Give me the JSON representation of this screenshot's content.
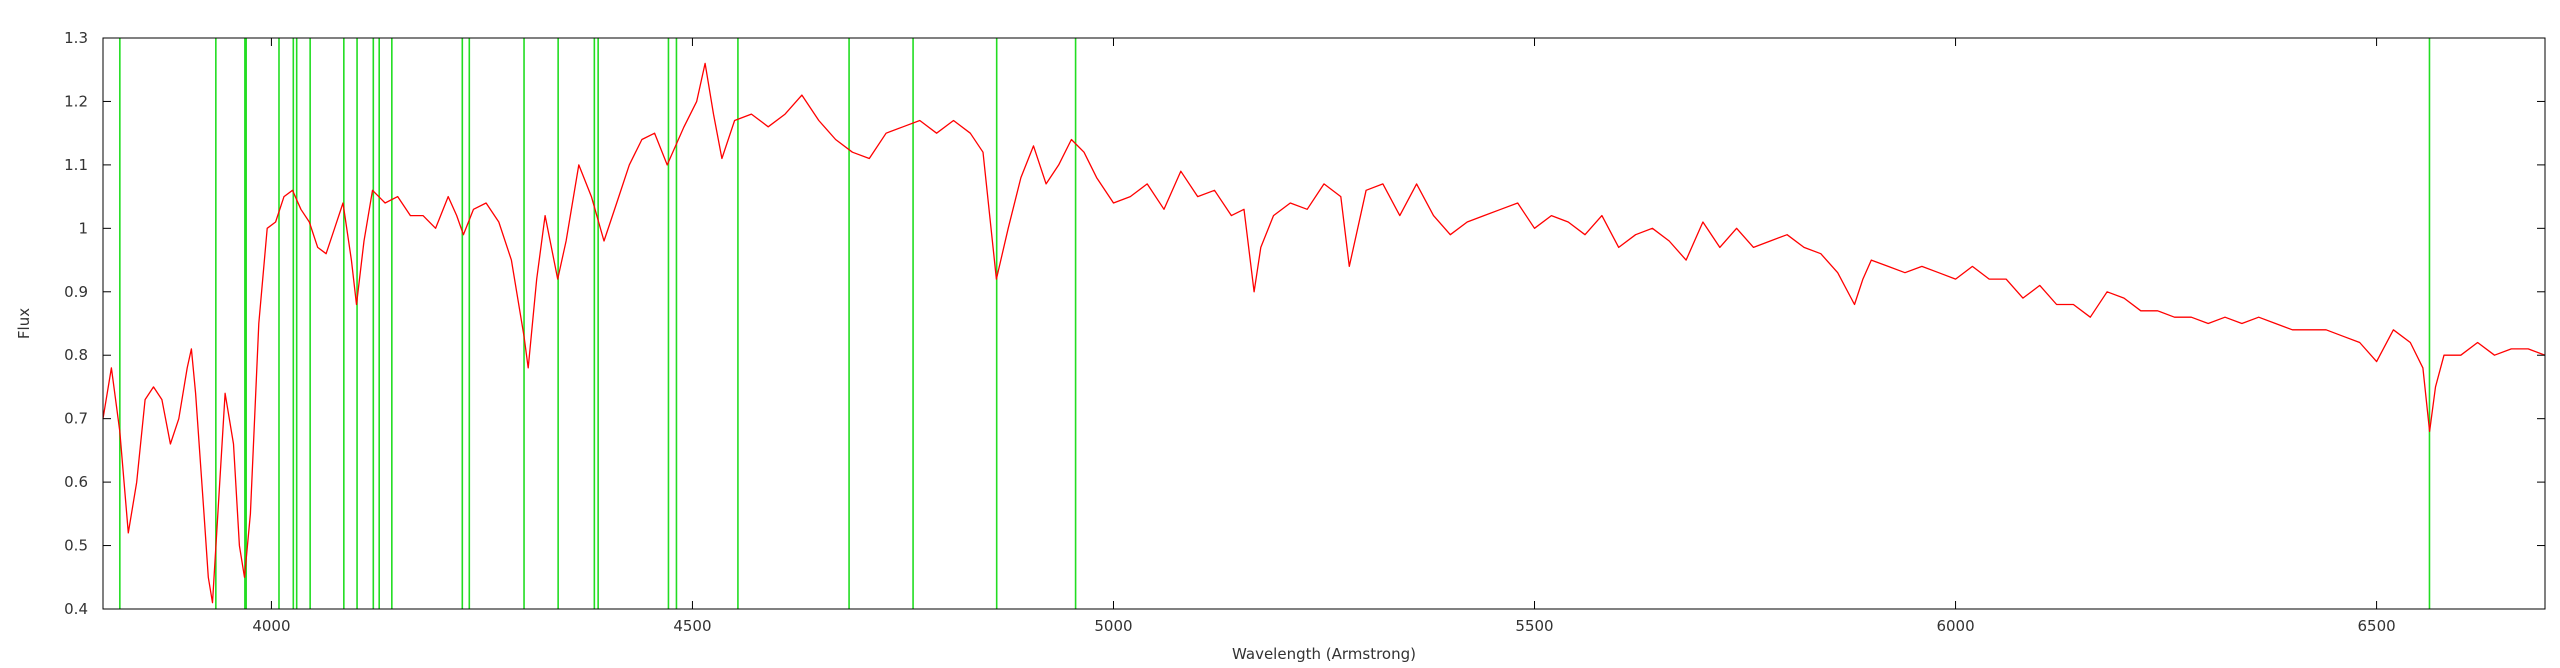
{
  "chart_data": {
    "type": "line",
    "title": "",
    "xlabel": "Wavelength (Armstrong)",
    "ylabel": "Flux",
    "xlim": [
      3800,
      6700
    ],
    "ylim": [
      0.4,
      1.3
    ],
    "xticks": [
      4000,
      4500,
      5000,
      5500,
      6000,
      6500
    ],
    "yticks": [
      0.4,
      0.5,
      0.6,
      0.7,
      0.8,
      0.9,
      1,
      1.1,
      1.2,
      1.3
    ],
    "xtick_labels": [
      "4000",
      "4500",
      "5000",
      "5500",
      "6000",
      "6500"
    ],
    "ytick_labels": [
      "0.4",
      "0.5",
      "0.6",
      "0.7",
      "0.8",
      "0.9",
      "1",
      "1.1",
      "1.2",
      "1.3"
    ],
    "grid": false,
    "legend": "none",
    "series": [
      {
        "color": "#ff0000",
        "x": [
          3800,
          3810,
          3820,
          3830,
          3840,
          3850,
          3860,
          3870,
          3880,
          3890,
          3900,
          3905,
          3910,
          3920,
          3925,
          3930,
          3935,
          3945,
          3955,
          3962,
          3968,
          3975,
          3985,
          3995,
          4005,
          4015,
          4025,
          4035,
          4045,
          4055,
          4065,
          4075,
          4085,
          4095,
          4101,
          4110,
          4120,
          4135,
          4150,
          4165,
          4180,
          4195,
          4210,
          4220,
          4228,
          4240,
          4255,
          4270,
          4285,
          4300,
          4305,
          4315,
          4325,
          4340,
          4350,
          4365,
          4380,
          4395,
          4410,
          4425,
          4440,
          4455,
          4470,
          4490,
          4505,
          4515,
          4525,
          4535,
          4550,
          4570,
          4590,
          4610,
          4630,
          4650,
          4670,
          4690,
          4710,
          4730,
          4750,
          4770,
          4790,
          4810,
          4830,
          4845,
          4861,
          4875,
          4890,
          4905,
          4920,
          4935,
          4950,
          4965,
          4980,
          5000,
          5020,
          5040,
          5060,
          5080,
          5100,
          5120,
          5140,
          5155,
          5167,
          5175,
          5190,
          5210,
          5230,
          5250,
          5270,
          5280,
          5300,
          5320,
          5340,
          5360,
          5380,
          5400,
          5420,
          5440,
          5460,
          5480,
          5500,
          5520,
          5540,
          5560,
          5580,
          5600,
          5620,
          5640,
          5660,
          5680,
          5700,
          5720,
          5740,
          5760,
          5780,
          5800,
          5820,
          5840,
          5860,
          5880,
          5890,
          5900,
          5920,
          5940,
          5960,
          5980,
          6000,
          6020,
          6040,
          6060,
          6080,
          6100,
          6120,
          6140,
          6160,
          6180,
          6200,
          6220,
          6240,
          6260,
          6280,
          6300,
          6320,
          6340,
          6360,
          6380,
          6400,
          6420,
          6440,
          6460,
          6480,
          6500,
          6520,
          6540,
          6555,
          6563,
          6570,
          6580,
          6600,
          6620,
          6640,
          6660,
          6680,
          6700
        ],
        "y": [
          0.7,
          0.78,
          0.68,
          0.52,
          0.6,
          0.73,
          0.75,
          0.73,
          0.66,
          0.7,
          0.78,
          0.81,
          0.74,
          0.55,
          0.45,
          0.41,
          0.52,
          0.74,
          0.66,
          0.5,
          0.45,
          0.55,
          0.85,
          1.0,
          1.01,
          1.05,
          1.06,
          1.03,
          1.01,
          0.97,
          0.96,
          1.0,
          1.04,
          0.95,
          0.88,
          0.98,
          1.06,
          1.04,
          1.05,
          1.02,
          1.02,
          1.0,
          1.05,
          1.02,
          0.99,
          1.03,
          1.04,
          1.01,
          0.95,
          0.83,
          0.78,
          0.92,
          1.02,
          0.92,
          0.98,
          1.1,
          1.05,
          0.98,
          1.04,
          1.1,
          1.14,
          1.15,
          1.1,
          1.16,
          1.2,
          1.26,
          1.18,
          1.11,
          1.17,
          1.18,
          1.16,
          1.18,
          1.21,
          1.17,
          1.14,
          1.12,
          1.11,
          1.15,
          1.16,
          1.17,
          1.15,
          1.17,
          1.15,
          1.12,
          0.92,
          1.0,
          1.08,
          1.13,
          1.07,
          1.1,
          1.14,
          1.12,
          1.08,
          1.04,
          1.05,
          1.07,
          1.03,
          1.09,
          1.05,
          1.06,
          1.02,
          1.03,
          0.9,
          0.97,
          1.02,
          1.04,
          1.03,
          1.07,
          1.05,
          0.94,
          1.06,
          1.07,
          1.02,
          1.07,
          1.02,
          0.99,
          1.01,
          1.02,
          1.03,
          1.04,
          1.0,
          1.02,
          1.01,
          0.99,
          1.02,
          0.97,
          0.99,
          1.0,
          0.98,
          0.95,
          1.01,
          0.97,
          1.0,
          0.97,
          0.98,
          0.99,
          0.97,
          0.96,
          0.93,
          0.88,
          0.92,
          0.95,
          0.94,
          0.93,
          0.94,
          0.93,
          0.92,
          0.94,
          0.92,
          0.92,
          0.89,
          0.91,
          0.88,
          0.88,
          0.86,
          0.9,
          0.89,
          0.87,
          0.87,
          0.86,
          0.86,
          0.85,
          0.86,
          0.85,
          0.86,
          0.85,
          0.84,
          0.84,
          0.84,
          0.83,
          0.82,
          0.79,
          0.84,
          0.82,
          0.78,
          0.68,
          0.75,
          0.8,
          0.8,
          0.82,
          0.8,
          0.81,
          0.81,
          0.8
        ]
      }
    ],
    "reference_lines": {
      "color": "#22dd22",
      "x": [
        3820,
        3934,
        3968.5,
        3970,
        4009,
        4026,
        4030,
        4046,
        4086,
        4101.7,
        4121,
        4128,
        4143,
        4226.7,
        4235,
        4300,
        4340.5,
        4383.5,
        4388,
        4471.5,
        4481,
        4554,
        4686,
        4762,
        4861.3,
        4955,
        6562.8
      ]
    }
  }
}
